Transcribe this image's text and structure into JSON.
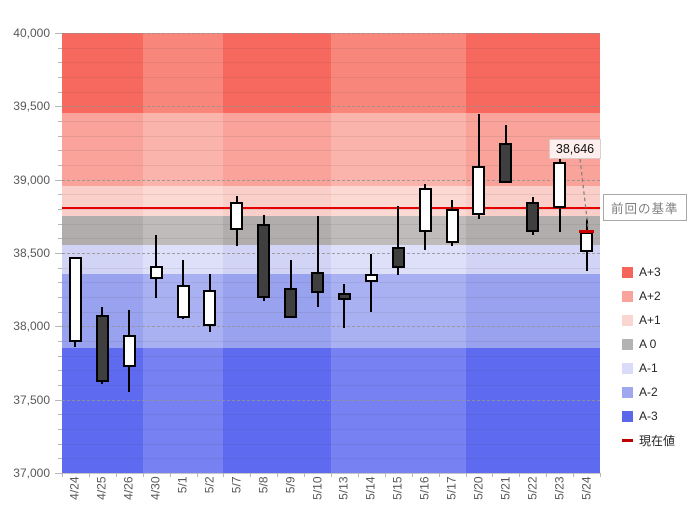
{
  "chart_data": {
    "type": "candlestick",
    "title": "",
    "y_axis": {
      "min": 37000,
      "max": 40000,
      "tick_step": 500,
      "minor_step": 100,
      "tick_labels": [
        "37,000",
        "37,500",
        "38,000",
        "38,500",
        "39,000",
        "39,500",
        "40,000"
      ]
    },
    "x_categories": [
      "4/24",
      "4/25",
      "4/26",
      "4/30",
      "5/1",
      "5/2",
      "5/7",
      "5/8",
      "5/9",
      "5/10",
      "5/13",
      "5/14",
      "5/15",
      "5/16",
      "5/17",
      "5/20",
      "5/21",
      "5/22",
      "5/23",
      "5/24"
    ],
    "week_groups": [
      [
        0,
        3
      ],
      [
        3,
        6
      ],
      [
        6,
        10
      ],
      [
        10,
        15
      ],
      [
        15,
        20
      ]
    ],
    "candles": [
      {
        "date": "4/24",
        "open": 37890,
        "high": 38470,
        "low": 37860,
        "close": 38470,
        "bullish": true
      },
      {
        "date": "4/25",
        "open": 38080,
        "high": 38130,
        "low": 37610,
        "close": 37620,
        "bullish": false
      },
      {
        "date": "4/26",
        "open": 37720,
        "high": 38110,
        "low": 37550,
        "close": 37940,
        "bullish": true
      },
      {
        "date": "4/30",
        "open": 38320,
        "high": 38620,
        "low": 38190,
        "close": 38410,
        "bullish": true
      },
      {
        "date": "5/1",
        "open": 38060,
        "high": 38450,
        "low": 38050,
        "close": 38280,
        "bullish": true
      },
      {
        "date": "5/2",
        "open": 38000,
        "high": 38360,
        "low": 37960,
        "close": 38250,
        "bullish": true
      },
      {
        "date": "5/7",
        "open": 38660,
        "high": 38890,
        "low": 38550,
        "close": 38850,
        "bullish": true
      },
      {
        "date": "5/8",
        "open": 38700,
        "high": 38760,
        "low": 38170,
        "close": 38190,
        "bullish": false
      },
      {
        "date": "5/9",
        "open": 38260,
        "high": 38450,
        "low": 38060,
        "close": 38060,
        "bullish": false
      },
      {
        "date": "5/10",
        "open": 38370,
        "high": 38750,
        "low": 38130,
        "close": 38230,
        "bullish": false
      },
      {
        "date": "5/13",
        "open": 38230,
        "high": 38290,
        "low": 37990,
        "close": 38180,
        "bullish": false
      },
      {
        "date": "5/14",
        "open": 38300,
        "high": 38490,
        "low": 38100,
        "close": 38360,
        "bullish": true
      },
      {
        "date": "5/15",
        "open": 38540,
        "high": 38820,
        "low": 38350,
        "close": 38400,
        "bullish": false
      },
      {
        "date": "5/16",
        "open": 38640,
        "high": 38970,
        "low": 38520,
        "close": 38940,
        "bullish": true
      },
      {
        "date": "5/17",
        "open": 38570,
        "high": 38860,
        "low": 38550,
        "close": 38800,
        "bullish": true
      },
      {
        "date": "5/20",
        "open": 38760,
        "high": 39450,
        "low": 38730,
        "close": 39090,
        "bullish": true
      },
      {
        "date": "5/21",
        "open": 39250,
        "high": 39370,
        "low": 38980,
        "close": 38980,
        "bullish": false
      },
      {
        "date": "5/22",
        "open": 38850,
        "high": 38880,
        "low": 38620,
        "close": 38640,
        "bullish": false
      },
      {
        "date": "5/23",
        "open": 38810,
        "high": 39140,
        "low": 38640,
        "close": 39120,
        "bullish": true
      },
      {
        "date": "5/24",
        "open": 38510,
        "high": 38730,
        "low": 38380,
        "close": 38646,
        "bullish": true
      }
    ],
    "bands": [
      {
        "name": "A+3",
        "from": 39455,
        "to": 40000,
        "color_dark": "#f7695e",
        "color_light": "#f9867b"
      },
      {
        "name": "A+2",
        "from": 38955,
        "to": 39455,
        "color_dark": "#f9a39a",
        "color_light": "#fbb4ac"
      },
      {
        "name": "A+1",
        "from": 38755,
        "to": 38955,
        "color_dark": "#fbcfc9",
        "color_light": "#fdd9d4"
      },
      {
        "name": "A 0",
        "from": 38555,
        "to": 38755,
        "color_dark": "#b1adac",
        "color_light": "#bebbba"
      },
      {
        "name": "A-1",
        "from": 38355,
        "to": 38555,
        "color_dark": "#d2d4f5",
        "color_light": "#dee0f9"
      },
      {
        "name": "A-2",
        "from": 37855,
        "to": 38355,
        "color_dark": "#99a2ef",
        "color_light": "#aab1f3"
      },
      {
        "name": "A-3",
        "from": 37000,
        "to": 37855,
        "color_dark": "#5e6af0",
        "color_light": "#7781f2"
      }
    ],
    "baseline": {
      "value": 38810,
      "color": "#e60000",
      "label": "前回の基準"
    },
    "current": {
      "value": 38646,
      "label": "38,646",
      "marker_color": "#cc0000",
      "date_index": 19
    },
    "legend": [
      {
        "label": "A+3",
        "color": "#f4655a",
        "type": "square"
      },
      {
        "label": "A+2",
        "color": "#f8a39b",
        "type": "square"
      },
      {
        "label": "A+1",
        "color": "#fbd5d0",
        "type": "square"
      },
      {
        "label": "A 0",
        "color": "#b3b3b3",
        "type": "square"
      },
      {
        "label": "A-1",
        "color": "#d9dbf8",
        "type": "square"
      },
      {
        "label": "A-2",
        "color": "#9ea7f0",
        "type": "square"
      },
      {
        "label": "A-3",
        "color": "#5b68ea",
        "type": "square"
      },
      {
        "label": "現在値",
        "color": "#c00000",
        "type": "dash"
      }
    ]
  }
}
